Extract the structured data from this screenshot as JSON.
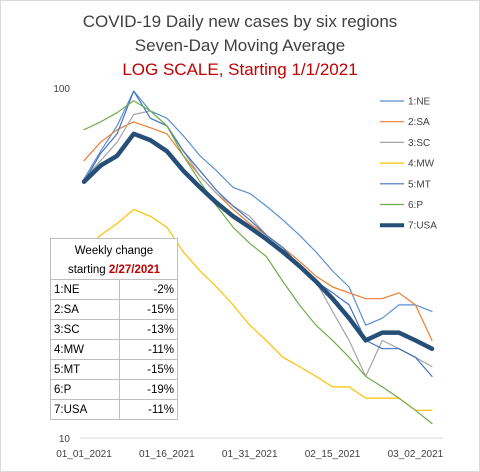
{
  "chart_data": {
    "type": "line",
    "title": "COVID-19 Daily new cases by six regions",
    "subtitle": "Seven-Day Moving Average",
    "subtitle2": "LOG SCALE, Starting 1/1/2021",
    "yscale": "log",
    "ylim": [
      10,
      100
    ],
    "ytick_labels": [
      "100",
      "10"
    ],
    "xtick_labels": [
      "01_01_2021",
      "01_16_2021",
      "01_31_2021",
      "02_15_2021",
      "03_02_2021"
    ],
    "x": [
      "01_01_2021",
      "01_04_2021",
      "01_07_2021",
      "01_10_2021",
      "01_13_2021",
      "01_16_2021",
      "01_19_2021",
      "01_22_2021",
      "01_25_2021",
      "01_28_2021",
      "01_31_2021",
      "02_03_2021",
      "02_06_2021",
      "02_09_2021",
      "02_12_2021",
      "02_15_2021",
      "02_18_2021",
      "02_21_2021",
      "02_24_2021",
      "02_27_2021",
      "03_02_2021",
      "03_05_2021"
    ],
    "legend_position": "right",
    "grid": false,
    "series": [
      {
        "name": "1:NE",
        "color": "#5b8fd1",
        "width": 1.2,
        "values": [
          55,
          66,
          78,
          98,
          86,
          82,
          73,
          64,
          58,
          52,
          50,
          46,
          42,
          38,
          34,
          30,
          27,
          21,
          22,
          24,
          24,
          23
        ]
      },
      {
        "name": "2:SA",
        "color": "#ed7d31",
        "width": 1.2,
        "values": [
          62,
          70,
          76,
          80,
          77,
          74,
          64,
          56,
          50,
          45,
          41,
          38,
          35,
          32,
          29,
          27,
          26,
          25,
          25,
          26,
          24,
          19
        ]
      },
      {
        "name": "3:SC",
        "color": "#a5a5a5",
        "width": 1.2,
        "values": [
          55,
          62,
          70,
          84,
          86,
          78,
          66,
          56,
          50,
          46,
          43,
          38,
          35,
          31,
          28,
          23,
          19,
          15,
          19,
          18,
          17,
          16
        ]
      },
      {
        "name": "4:MW",
        "color": "#ffc000",
        "width": 1.2,
        "values": [
          34,
          38,
          41,
          45,
          43,
          40,
          34,
          30,
          27,
          24,
          21,
          19,
          17,
          16,
          15,
          14,
          14,
          13,
          13,
          13,
          12,
          12
        ]
      },
      {
        "name": "5:MT",
        "color": "#4472c4",
        "width": 1.2,
        "values": [
          54,
          65,
          74,
          98,
          82,
          78,
          66,
          58,
          51,
          46,
          42,
          38,
          35,
          31,
          28,
          26,
          24,
          19,
          18,
          18,
          17,
          15
        ]
      },
      {
        "name": "6:P",
        "color": "#70ad47",
        "width": 1.2,
        "values": [
          76,
          80,
          85,
          92,
          86,
          78,
          64,
          54,
          46,
          40,
          36,
          33,
          28,
          24,
          21,
          19,
          17,
          15,
          14,
          13,
          12,
          11
        ]
      },
      {
        "name": "7:USA",
        "color": "#264f78",
        "width": 4.5,
        "values": [
          54,
          60,
          64,
          74,
          71,
          66,
          58,
          52,
          47,
          43,
          40,
          37,
          34,
          31,
          28,
          25,
          22,
          19,
          20,
          20,
          19,
          18
        ]
      }
    ]
  },
  "table": {
    "header_line1": "Weekly change",
    "header_line2_prefix": "starting ",
    "header_line2_date": "2/27/2021",
    "rows": [
      {
        "region": "1:NE",
        "change": "-2%"
      },
      {
        "region": "2:SA",
        "change": "-15%"
      },
      {
        "region": "3:SC",
        "change": "-13%"
      },
      {
        "region": "4:MW",
        "change": "-11%"
      },
      {
        "region": "5:MT",
        "change": "-15%"
      },
      {
        "region": "6:P",
        "change": "-19%"
      },
      {
        "region": "7:USA",
        "change": "-11%"
      }
    ]
  }
}
